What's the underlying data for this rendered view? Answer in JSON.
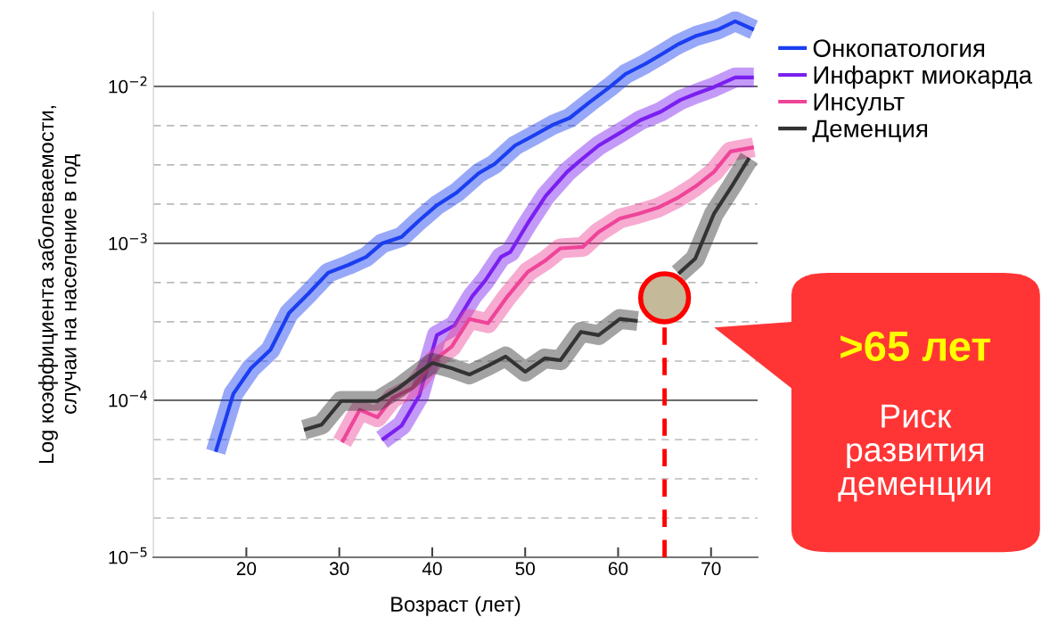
{
  "chart_data": {
    "type": "line",
    "xlabel": "Возраст (лет)",
    "ylabel": "Log коэффициента заболеваемости,\nслучаи на население в год",
    "log": "y",
    "xlim": [
      10,
      75
    ],
    "xticks": [
      20,
      30,
      40,
      50,
      60,
      70
    ],
    "ylim": [
      1e-05,
      0.03
    ],
    "yticks": [
      {
        "value": 1e-05,
        "label": "10$^{−5}$"
      },
      {
        "value": 1.778e-05,
        "label": null
      },
      {
        "value": 3.162e-05,
        "label": null
      },
      {
        "value": 5.623e-05,
        "label": null
      },
      {
        "value": 0.0001,
        "label": "10$^{−4}$"
      },
      {
        "value": 0.0001778,
        "label": null
      },
      {
        "value": 0.0003162,
        "label": null
      },
      {
        "value": 0.0005623,
        "label": null
      },
      {
        "value": 0.001,
        "label": "10$^{−3}$"
      },
      {
        "value": 0.001778,
        "label": null
      },
      {
        "value": 0.003162,
        "label": null
      },
      {
        "value": 0.005623,
        "label": null
      },
      {
        "value": 0.01,
        "label": "10$^{−2}$"
      }
    ],
    "grid": "y",
    "legend": "top right",
    "line_style": "solid",
    "marker": "none",
    "series": [
      {
        "name": "Онкопатология",
        "color": "#1a3ef0",
        "x": [
          16.7,
          18.6,
          20.5,
          22.6,
          24.6,
          26.7,
          28.8,
          31,
          32.9,
          34.6,
          36.7,
          38.6,
          40.5,
          42.6,
          45,
          46.7,
          48.9,
          51,
          53,
          54.8,
          56.9,
          59.1,
          60.8,
          62.9,
          64.5,
          66.4,
          68.4,
          70.7,
          72.6,
          74.6
        ],
        "values": [
          4.7e-05,
          0.00011,
          0.00016,
          0.00021,
          0.00036,
          0.00048,
          0.00065,
          0.00073,
          0.00082,
          0.001,
          0.0011,
          0.0014,
          0.00175,
          0.0021,
          0.0028,
          0.0032,
          0.0042,
          0.0049,
          0.0057,
          0.0063,
          0.0079,
          0.0099,
          0.012,
          0.0139,
          0.0158,
          0.0185,
          0.021,
          0.023,
          0.026,
          0.023
        ]
      },
      {
        "name": "Инфаркт миокарда",
        "color": "#7a1ff0",
        "x": [
          34.6,
          36.7,
          38.6,
          40.5,
          42.4,
          44.3,
          45.7,
          47.4,
          48.4,
          50.3,
          52.2,
          54.5,
          56,
          57.9,
          60.3,
          62.4,
          64.6,
          66.7,
          68.4,
          70.3,
          72.6,
          74.6
        ],
        "values": [
          5.6e-05,
          6.9e-05,
          0.000107,
          0.00026,
          0.0003,
          0.00046,
          0.00058,
          0.00082,
          0.00088,
          0.00135,
          0.002,
          0.00285,
          0.0034,
          0.0042,
          0.0051,
          0.0061,
          0.0069,
          0.0082,
          0.009,
          0.0099,
          0.0114,
          0.0114
        ]
      },
      {
        "name": "Инсульт",
        "color": "#ee4499",
        "x": [
          30.3,
          32.2,
          34.1,
          35.7,
          37.9,
          40.2,
          42.1,
          44,
          46,
          48.1,
          50.3,
          52.2,
          53.8,
          56.2,
          57.9,
          60.2,
          62.1,
          64.3,
          66.4,
          68.3,
          70.3,
          72.1,
          74.6
        ],
        "values": [
          5.4e-05,
          8.7e-05,
          7.8e-05,
          0.000103,
          0.00012,
          0.00018,
          0.00022,
          0.00033,
          0.00031,
          0.00046,
          0.00066,
          0.00078,
          0.00093,
          0.00095,
          0.00118,
          0.00144,
          0.00154,
          0.00169,
          0.00195,
          0.0023,
          0.00285,
          0.00385,
          0.0041
        ]
      },
      {
        "name": "Деменция",
        "color": "#333333",
        "x": [
          26.2,
          28.1,
          30.2,
          32.1,
          34.1,
          36.4,
          38.3,
          40,
          42.1,
          44,
          46,
          47.9,
          50,
          52.1,
          53.8,
          56,
          57.9,
          60.2,
          62.1,
          64.3,
          66.5,
          68.3,
          70.3,
          72.2,
          74.1
        ],
        "values": [
          6.5e-05,
          7e-05,
          9.9e-05,
          9.9e-05,
          9.9e-05,
          0.00012,
          0.000146,
          0.000173,
          0.00016,
          0.000146,
          0.000166,
          0.00019,
          0.000152,
          0.000185,
          0.00018,
          0.000273,
          0.00026,
          0.00033,
          0.00032,
          null,
          0.00064,
          0.0008,
          0.00154,
          0.0023,
          0.0035
        ]
      },
      {
        "type": "scatter",
        "color": "#c4b998",
        "marker": "circle",
        "x": [
          65
        ],
        "values": [
          0.00045
        ]
      }
    ],
    "ref_lines": [
      {
        "axis": "x",
        "value": 65,
        "color": "#ff0000",
        "line_style": "dashed"
      }
    ],
    "annotations": [
      ">65 лет",
      "Риск развития деменции"
    ]
  }
}
